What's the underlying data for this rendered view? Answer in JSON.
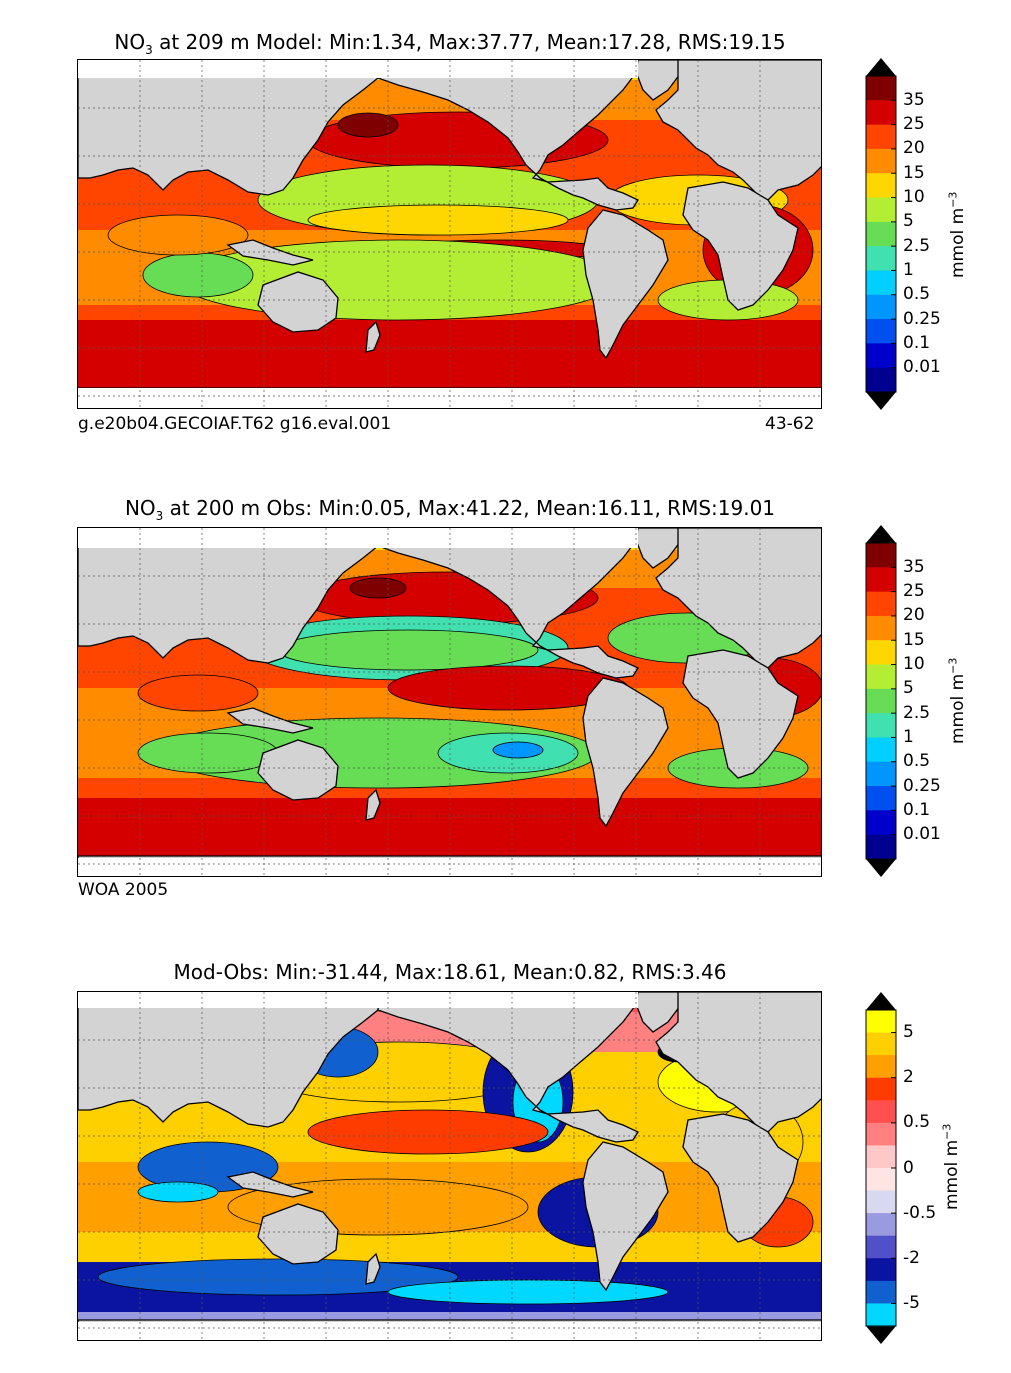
{
  "chart_data": [
    {
      "type": "heatmap",
      "panel_id": "model",
      "title_species": "NO",
      "title_subscript": "3",
      "title_rest": " at 209 m Model: Min:1.34, Max:37.77, Mean:17.28, RMS:19.15",
      "stats": {
        "min": 1.34,
        "max": 37.77,
        "mean": 17.28,
        "rms": 19.15
      },
      "depth_m": 209,
      "left_caption": "g.e20b04.GECOIAF.T62 g16.eval.001",
      "right_caption": "43-62",
      "colorbar_ticks": [
        "35",
        "25",
        "20",
        "15",
        "10",
        "5",
        "2.5",
        "1",
        "0.5",
        "0.25",
        "0.1",
        "0.01"
      ],
      "colorbar_colors": [
        "#7f0000",
        "#d40000",
        "#ff4500",
        "#ff8c00",
        "#ffd700",
        "#b4ee34",
        "#66dd55",
        "#40e0b0",
        "#00d0ff",
        "#0096ff",
        "#0050f0",
        "#0000cd",
        "#000090"
      ],
      "colorbar_label_base": "mmol m",
      "colorbar_label_exp": "−3"
    },
    {
      "type": "heatmap",
      "panel_id": "obs",
      "title_species": "NO",
      "title_subscript": "3",
      "title_rest": " at 200 m Obs: Min:0.05, Max:41.22, Mean:16.11, RMS:19.01",
      "stats": {
        "min": 0.05,
        "max": 41.22,
        "mean": 16.11,
        "rms": 19.01
      },
      "depth_m": 200,
      "left_caption": "WOA 2005",
      "colorbar_ticks": [
        "35",
        "25",
        "20",
        "15",
        "10",
        "5",
        "2.5",
        "1",
        "0.5",
        "0.25",
        "0.1",
        "0.01"
      ],
      "colorbar_colors": [
        "#7f0000",
        "#d40000",
        "#ff4500",
        "#ff8c00",
        "#ffd700",
        "#b4ee34",
        "#66dd55",
        "#40e0b0",
        "#00d0ff",
        "#0096ff",
        "#0050f0",
        "#0000cd",
        "#000090"
      ],
      "colorbar_label_base": "mmol m",
      "colorbar_label_exp": "−3"
    },
    {
      "type": "heatmap",
      "panel_id": "diff",
      "title": "Mod-Obs: Min:-31.44, Max:18.61, Mean:0.82, RMS:3.46",
      "stats": {
        "min": -31.44,
        "max": 18.61,
        "mean": 0.82,
        "rms": 3.46
      },
      "colorbar_ticks": [
        "5",
        "2",
        "0.5",
        "0",
        "-0.5",
        "-2",
        "-5"
      ],
      "colorbar_colors": [
        "#ffff00",
        "#ffd000",
        "#ffa000",
        "#ff3c00",
        "#ff5050",
        "#ff8080",
        "#ffc8c8",
        "#ffe4e4",
        "#d8d8f0",
        "#9a9ae0",
        "#5050c8",
        "#0a14a0",
        "#1060d0",
        "#00d8ff"
      ],
      "colorbar_label_base": "mmol m",
      "colorbar_label_exp": "−3"
    }
  ]
}
